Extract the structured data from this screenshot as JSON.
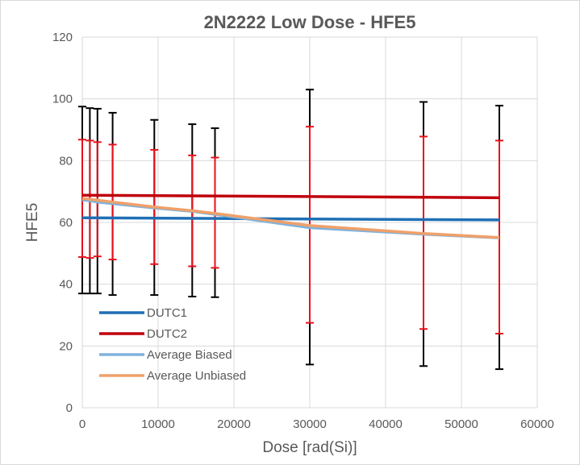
{
  "chart_data": {
    "type": "line",
    "title": "2N2222 Low Dose - HFE5",
    "xlabel": "Dose [rad(Si)]",
    "ylabel": "HFE5",
    "xlim": [
      0,
      60000
    ],
    "ylim": [
      0,
      120
    ],
    "xticks": [
      0,
      10000,
      20000,
      30000,
      40000,
      50000,
      60000
    ],
    "yticks": [
      0,
      20,
      40,
      60,
      80,
      100,
      120
    ],
    "grid": true,
    "legend_position": "bottom-left",
    "series": [
      {
        "name": "DUTC1",
        "color": "#1f6fb5",
        "x": [
          0,
          55000
        ],
        "y": [
          61.5,
          60.8
        ]
      },
      {
        "name": "DUTC2",
        "color": "#c0000c",
        "x": [
          0,
          55000
        ],
        "y": [
          68.8,
          68.0
        ]
      },
      {
        "name": "Average Biased",
        "color": "#7fb2dd",
        "x": [
          0,
          1000,
          2000,
          4000,
          9500,
          14500,
          17500,
          30000,
          45000,
          55000
        ],
        "y": [
          67.3,
          67.0,
          66.6,
          66.1,
          64.7,
          63.6,
          62.6,
          58.3,
          56.2,
          55.0
        ]
      },
      {
        "name": "Average Unbiased",
        "color": "#f0a06a",
        "x": [
          0,
          1000,
          2000,
          4000,
          9500,
          14500,
          17500,
          30000,
          45000,
          55000
        ],
        "y": [
          67.8,
          67.5,
          67.2,
          66.6,
          65.0,
          63.8,
          62.9,
          59.0,
          56.4,
          55.1
        ]
      }
    ],
    "error_bars": [
      {
        "color": "#000000",
        "x": [
          0,
          1000,
          2000,
          4000,
          9500,
          14500,
          17500,
          30000,
          45000,
          55000
        ],
        "low": [
          37.0,
          37.0,
          37.0,
          36.5,
          36.5,
          36.0,
          35.8,
          14.0,
          13.5,
          12.5
        ],
        "high": [
          97.5,
          97.0,
          96.8,
          95.5,
          93.2,
          91.8,
          90.5,
          103.0,
          99.0,
          97.8
        ]
      },
      {
        "color": "#e8101a",
        "x": [
          0,
          1000,
          2000,
          4000,
          9500,
          14500,
          17500,
          30000,
          45000,
          55000
        ],
        "low": [
          48.8,
          48.5,
          49.0,
          48.0,
          46.5,
          45.8,
          45.3,
          27.5,
          25.5,
          24.0
        ],
        "high": [
          86.8,
          86.5,
          86.0,
          85.2,
          83.5,
          81.7,
          81.0,
          91.0,
          87.8,
          86.5
        ]
      }
    ]
  }
}
